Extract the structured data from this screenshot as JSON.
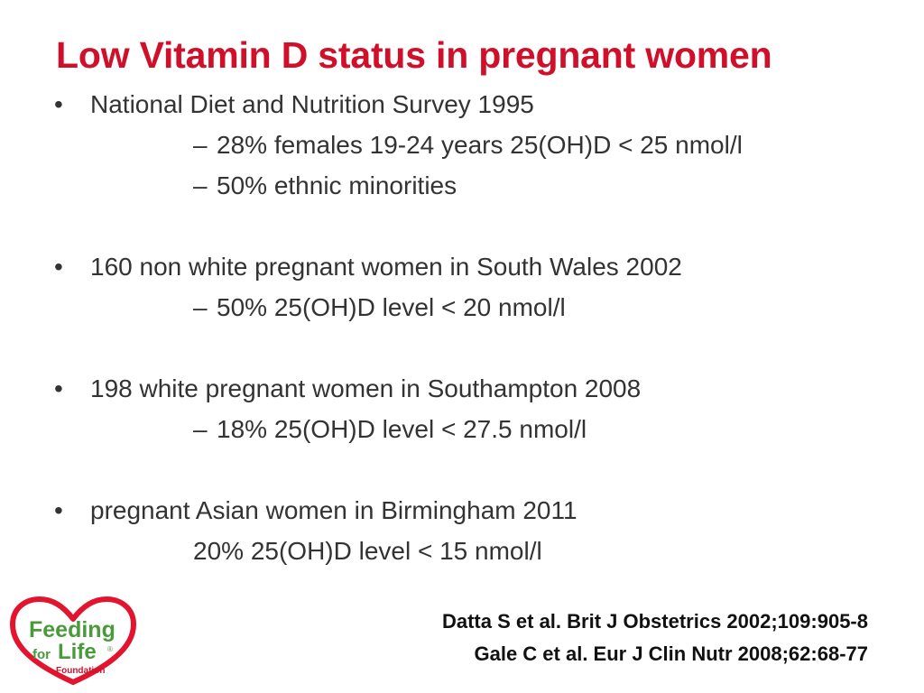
{
  "slide": {
    "title": "Low Vitamin D status in pregnant women",
    "bullet_char": "•",
    "dash_char": "–",
    "bullets": [
      {
        "text": "National Diet and Nutrition Survey 1995",
        "subs": [
          "28% females 19-24 years 25(OH)D < 25 nmol/l",
          "50% ethnic minorities"
        ]
      },
      {
        "text": "160 non white pregnant women in South Wales 2002",
        "subs": [
          "50% 25(OH)D level < 20 nmol/l"
        ]
      },
      {
        "text": "198 white pregnant women in Southampton 2008",
        "subs": [
          "18% 25(OH)D level < 27.5 nmol/l"
        ]
      },
      {
        "text": "pregnant Asian women in Birmingham 2011",
        "plain_sub": "20% 25(OH)D level < 15 nmol/l"
      }
    ],
    "references": [
      "Datta S et al. Brit J Obstetrics 2002;109:905-8",
      "Gale C et al. Eur J Clin Nutr 2008;62:68-77"
    ]
  },
  "logo": {
    "line1": "Feeding",
    "line2a": "for",
    "line2b": "Life",
    "registered": "®",
    "line3": "Foundation",
    "heart_color": "#e3142d",
    "text_color": "#4a9a3c",
    "small_text_color": "#c4172f"
  }
}
